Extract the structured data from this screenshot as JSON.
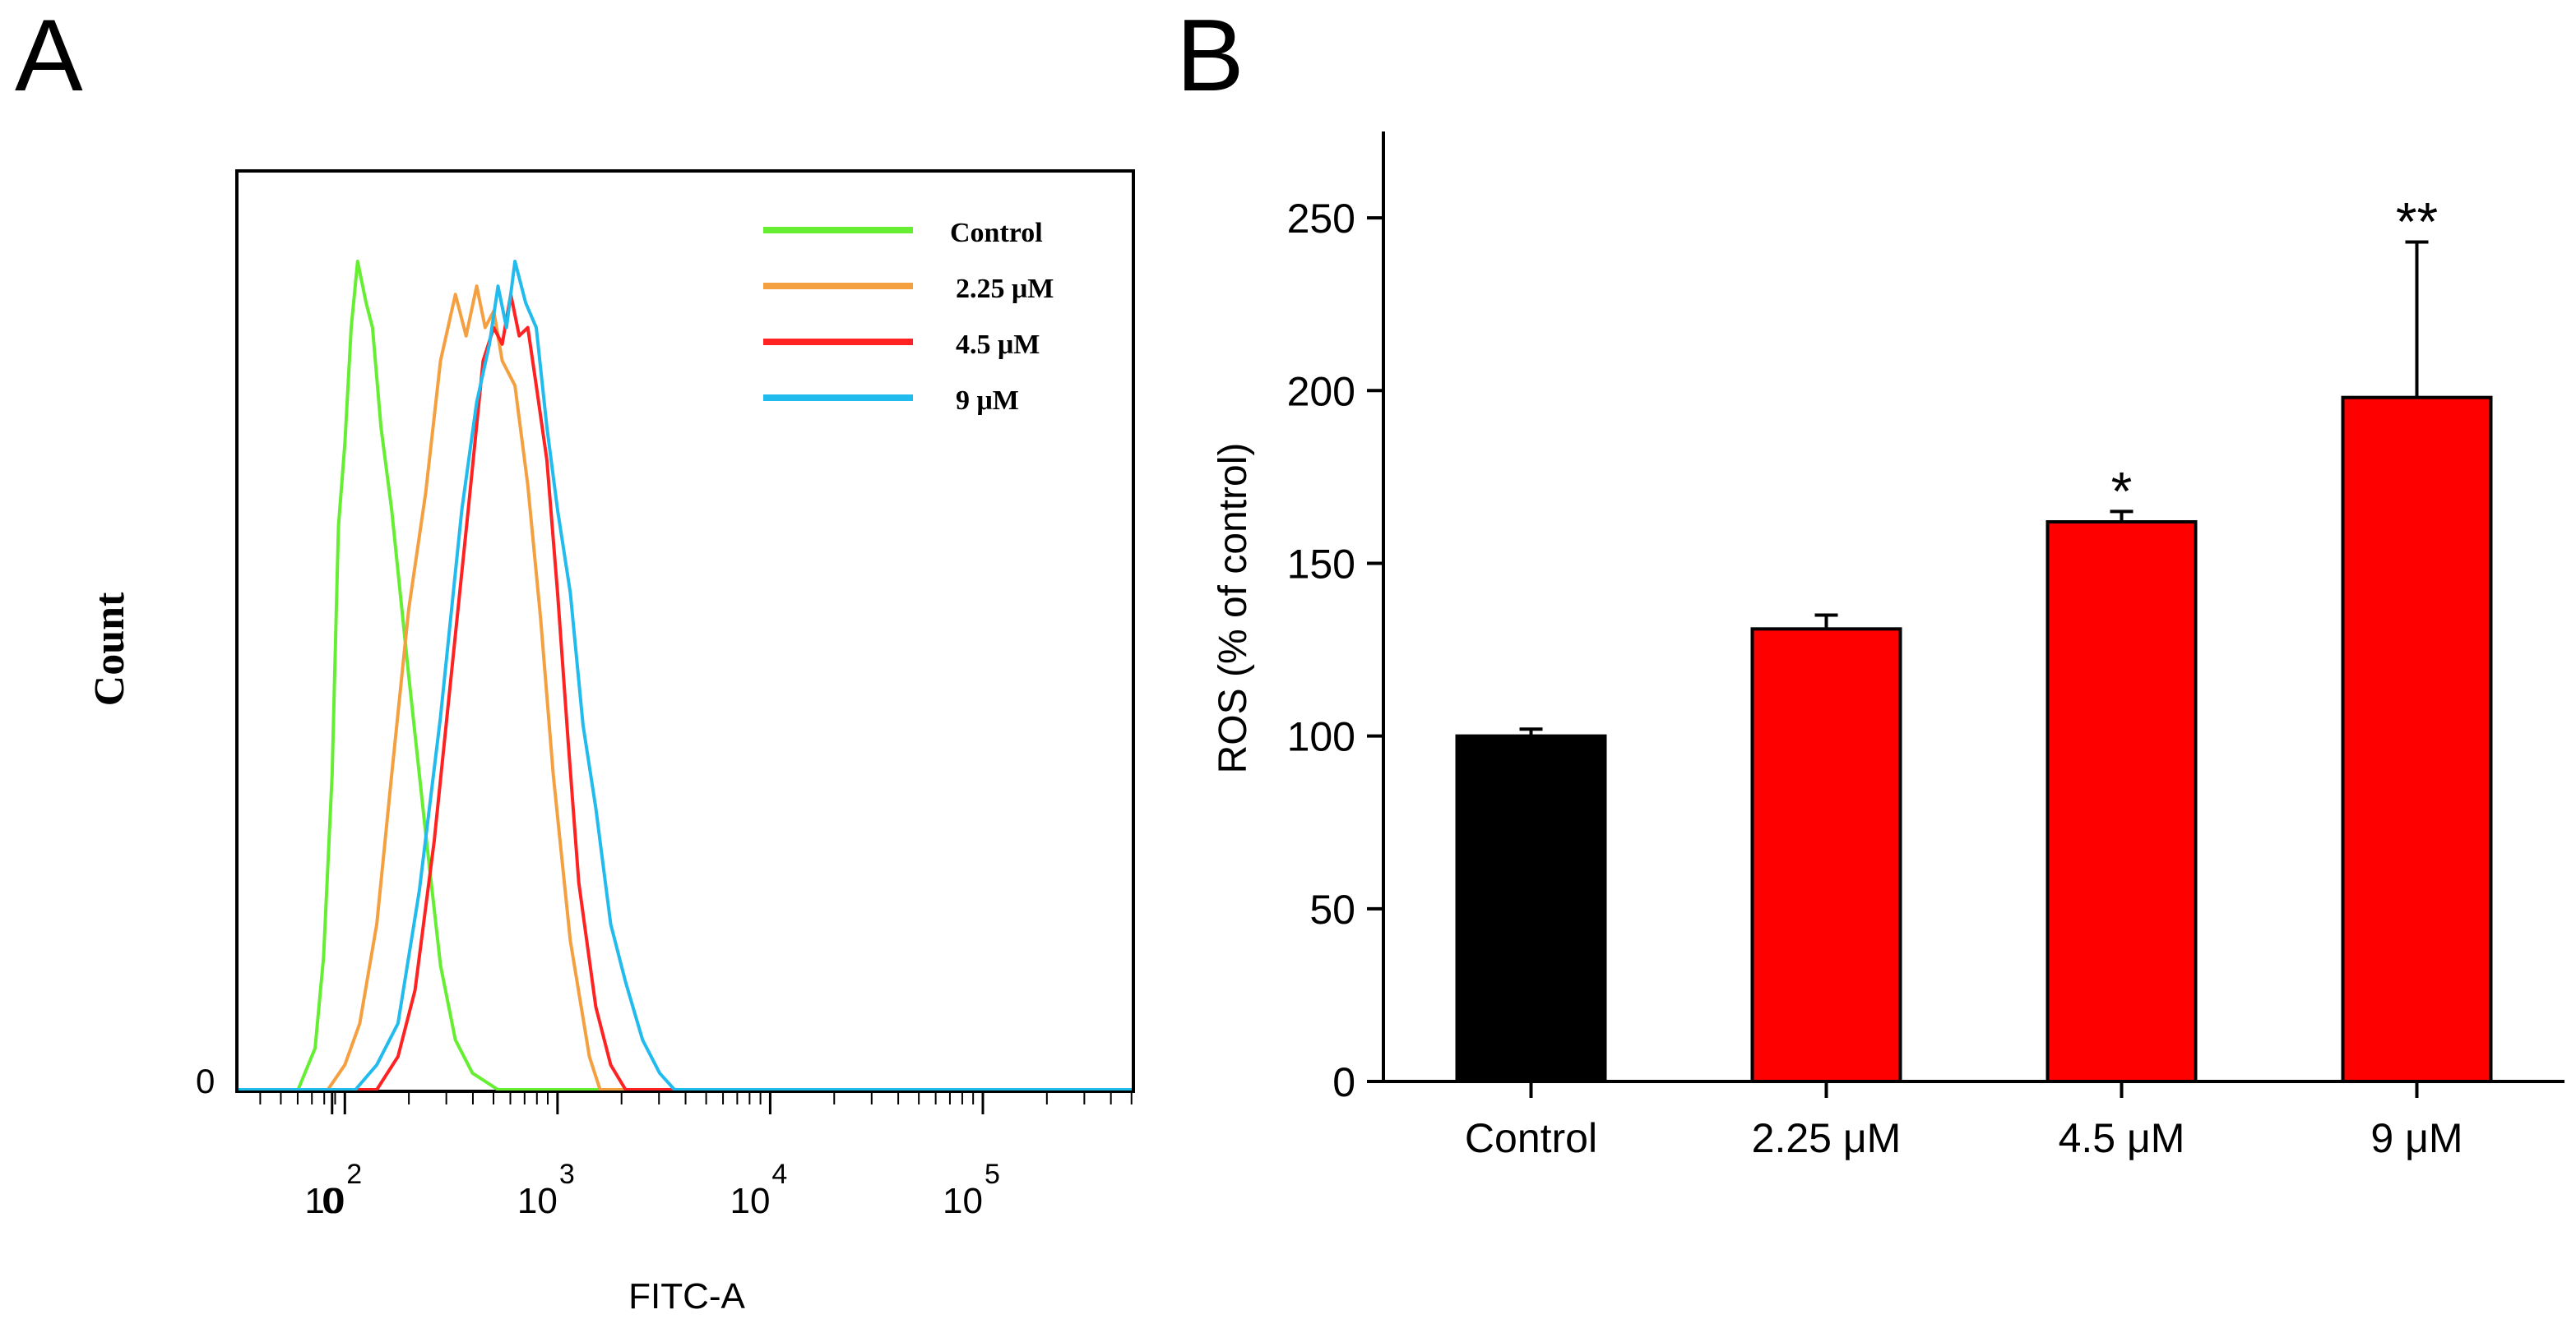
{
  "chart_data": [
    {
      "panel": "A",
      "type": "line",
      "title": "",
      "xlabel": "FITC-A",
      "ylabel": "Count",
      "x_scale": "log",
      "x_range_log10": [
        1.5,
        5.7
      ],
      "y_range": [
        0,
        1
      ],
      "y_tick_labels": [
        "0"
      ],
      "x_tick_labels": [
        "0",
        "10",
        "10",
        "10",
        "10"
      ],
      "x_tick_exponents": [
        "",
        "2",
        "3",
        "4",
        "5"
      ],
      "x_tick_log10": [
        1.94,
        2.0,
        3.0,
        4.0,
        5.0
      ],
      "legend_position": "top-right",
      "series": [
        {
          "name": "Control",
          "color": "#66ee33",
          "x_log10": [
            1.5,
            1.78,
            1.86,
            1.9,
            1.94,
            1.97,
            2.0,
            2.03,
            2.06,
            2.1,
            2.13,
            2.17,
            2.22,
            2.3,
            2.38,
            2.45,
            2.52,
            2.6,
            2.72,
            5.7
          ],
          "y": [
            0.0,
            0.0,
            0.05,
            0.16,
            0.38,
            0.68,
            0.78,
            0.92,
            1.0,
            0.95,
            0.92,
            0.8,
            0.7,
            0.5,
            0.31,
            0.15,
            0.06,
            0.02,
            0.0,
            0.0
          ]
        },
        {
          "name": "2.25 μM",
          "color": "#f5a040",
          "x_log10": [
            1.5,
            1.92,
            2.0,
            2.07,
            2.15,
            2.22,
            2.3,
            2.38,
            2.45,
            2.52,
            2.57,
            2.62,
            2.66,
            2.7,
            2.74,
            2.8,
            2.86,
            2.92,
            2.98,
            3.06,
            3.15,
            3.2,
            5.7
          ],
          "y": [
            0.0,
            0.0,
            0.03,
            0.08,
            0.2,
            0.38,
            0.58,
            0.72,
            0.88,
            0.96,
            0.91,
            0.97,
            0.92,
            0.94,
            0.88,
            0.85,
            0.73,
            0.57,
            0.38,
            0.18,
            0.04,
            0.0,
            0.0
          ]
        },
        {
          "name": "4.5 μM",
          "color": "#ff2222",
          "x_log10": [
            1.5,
            2.15,
            2.25,
            2.33,
            2.42,
            2.5,
            2.58,
            2.65,
            2.7,
            2.74,
            2.78,
            2.82,
            2.86,
            2.9,
            2.95,
            3.0,
            3.05,
            3.1,
            3.18,
            3.25,
            3.32,
            5.7
          ],
          "y": [
            0.0,
            0.0,
            0.04,
            0.12,
            0.3,
            0.5,
            0.7,
            0.88,
            0.92,
            0.9,
            0.96,
            0.91,
            0.92,
            0.85,
            0.76,
            0.6,
            0.42,
            0.25,
            0.1,
            0.03,
            0.0,
            0.0
          ]
        },
        {
          "name": "9 μM",
          "color": "#22bbee",
          "x_log10": [
            1.5,
            2.05,
            2.15,
            2.25,
            2.35,
            2.45,
            2.55,
            2.62,
            2.68,
            2.72,
            2.76,
            2.8,
            2.85,
            2.9,
            2.95,
            3.0,
            3.06,
            3.12,
            3.18,
            3.25,
            3.32,
            3.4,
            3.48,
            3.55,
            5.7
          ],
          "y": [
            0.0,
            0.0,
            0.03,
            0.08,
            0.24,
            0.45,
            0.7,
            0.83,
            0.9,
            0.97,
            0.92,
            1.0,
            0.95,
            0.92,
            0.8,
            0.7,
            0.6,
            0.44,
            0.34,
            0.2,
            0.13,
            0.06,
            0.02,
            0.0,
            0.0
          ]
        }
      ]
    },
    {
      "panel": "B",
      "type": "bar",
      "title": "",
      "xlabel": "",
      "ylabel": "ROS (% of control)",
      "ylim": [
        0,
        275
      ],
      "y_ticks": [
        0,
        50,
        100,
        150,
        200,
        250
      ],
      "categories": [
        "Control",
        "2.25 μM",
        "4.5 μM",
        "9 μM"
      ],
      "values": [
        100,
        131,
        162,
        198
      ],
      "errors": [
        2,
        4,
        3,
        45
      ],
      "bar_colors": [
        "#000000",
        "#ff0000",
        "#ff0000",
        "#ff0000"
      ],
      "significance": [
        "",
        "",
        "*",
        "**"
      ],
      "grid": false
    }
  ],
  "panel_labels": [
    "A",
    "B"
  ]
}
